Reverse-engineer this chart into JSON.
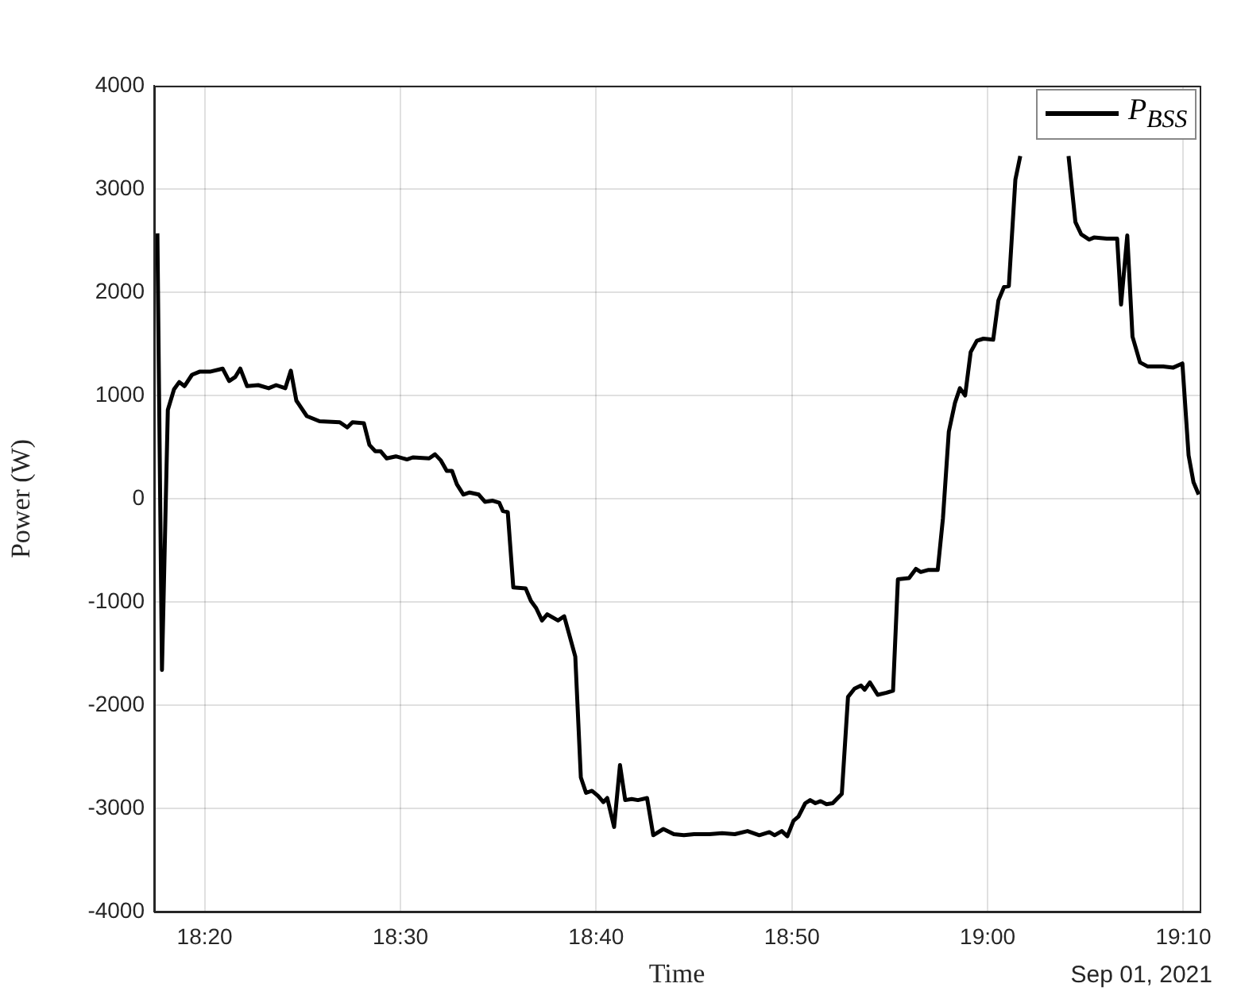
{
  "chart_data": {
    "type": "line",
    "xlabel": "Time",
    "ylabel": "Power (W)",
    "annotations": [
      "Sep 01, 2021"
    ],
    "xlim": [
      "2021-09-01T18:17:25",
      "2021-09-01T19:10:50"
    ],
    "xticks": [
      {
        "value": "2021-09-01T18:20",
        "label": "18:20"
      },
      {
        "value": "2021-09-01T18:30",
        "label": "18:30"
      },
      {
        "value": "2021-09-01T18:40",
        "label": "18:40"
      },
      {
        "value": "2021-09-01T18:50",
        "label": "18:50"
      },
      {
        "value": "2021-09-01T19:00",
        "label": "19:00"
      },
      {
        "value": "2021-09-01T19:10",
        "label": "19:10"
      }
    ],
    "ylim": [
      -4000,
      4000
    ],
    "yticks": [
      -4000,
      -3000,
      -2000,
      -1000,
      0,
      1000,
      2000,
      3000,
      4000
    ],
    "grid": true,
    "legend": "top right",
    "line_style": "solid",
    "marker": "none",
    "x": [
      "2021-09-01T18:17:35",
      "2021-09-01T18:17:49",
      "2021-09-01T18:18:07",
      "2021-09-01T18:18:26",
      "2021-09-01T18:18:42",
      "2021-09-01T18:18:58",
      "2021-09-01T18:19:21",
      "2021-09-01T18:19:44",
      "2021-09-01T18:20:16",
      "2021-09-01T18:20:55",
      "2021-09-01T18:21:15",
      "2021-09-01T18:21:34",
      "2021-09-01T18:21:49",
      "2021-09-01T18:22:10",
      "2021-09-01T18:22:44",
      "2021-09-01T18:23:16",
      "2021-09-01T18:23:39",
      "2021-09-01T18:24:07",
      "2021-09-01T18:24:24",
      "2021-09-01T18:24:41",
      "2021-09-01T18:25:13",
      "2021-09-01T18:25:52",
      "2021-09-01T18:26:54",
      "2021-09-01T18:27:17",
      "2021-09-01T18:27:33",
      "2021-09-01T18:28:08",
      "2021-09-01T18:28:25",
      "2021-09-01T18:28:43",
      "2021-09-01T18:28:59",
      "2021-09-01T18:29:18",
      "2021-09-01T18:29:46",
      "2021-09-01T18:30:20",
      "2021-09-01T18:30:38",
      "2021-09-01T18:31:28",
      "2021-09-01T18:31:46",
      "2021-09-01T18:32:04",
      "2021-09-01T18:32:22",
      "2021-09-01T18:32:38",
      "2021-09-01T18:32:53",
      "2021-09-01T18:33:13",
      "2021-09-01T18:33:32",
      "2021-09-01T18:34:00",
      "2021-09-01T18:34:19",
      "2021-09-01T18:34:43",
      "2021-09-01T18:35:03",
      "2021-09-01T18:35:14",
      "2021-09-01T18:35:29",
      "2021-09-01T18:35:46",
      "2021-09-01T18:36:24",
      "2021-09-01T18:36:40",
      "2021-09-01T18:36:56",
      "2021-09-01T18:37:14",
      "2021-09-01T18:37:30",
      "2021-09-01T18:38:03",
      "2021-09-01T18:38:22",
      "2021-09-01T18:38:37",
      "2021-09-01T18:38:56",
      "2021-09-01T18:39:13",
      "2021-09-01T18:39:29",
      "2021-09-01T18:39:47",
      "2021-09-01T18:40:06",
      "2021-09-01T18:40:22",
      "2021-09-01T18:40:34",
      "2021-09-01T18:40:55",
      "2021-09-01T18:41:13",
      "2021-09-01T18:41:29",
      "2021-09-01T18:41:49",
      "2021-09-01T18:42:08",
      "2021-09-01T18:42:36",
      "2021-09-01T18:42:55",
      "2021-09-01T18:43:26",
      "2021-09-01T18:43:58",
      "2021-09-01T18:44:29",
      "2021-09-01T18:45:00",
      "2021-09-01T18:45:47",
      "2021-09-01T18:46:26",
      "2021-09-01T18:47:05",
      "2021-09-01T18:47:44",
      "2021-09-01T18:48:20",
      "2021-09-01T18:48:51",
      "2021-09-01T18:49:07",
      "2021-09-01T18:49:29",
      "2021-09-01T18:49:46",
      "2021-09-01T18:50:05",
      "2021-09-01T18:50:20",
      "2021-09-01T18:50:41",
      "2021-09-01T18:50:56",
      "2021-09-01T18:51:12",
      "2021-09-01T18:51:28",
      "2021-09-01T18:51:46",
      "2021-09-01T18:52:05",
      "2021-09-01T18:52:33",
      "2021-09-01T18:52:52",
      "2021-09-01T18:53:12",
      "2021-09-01T18:53:32",
      "2021-09-01T18:53:43",
      "2021-09-01T18:53:59",
      "2021-09-01T18:54:23",
      "2021-09-01T18:54:50",
      "2021-09-01T18:55:10",
      "2021-09-01T18:55:25",
      "2021-09-01T18:55:59",
      "2021-09-01T18:56:20",
      "2021-09-01T18:56:35",
      "2021-09-01T18:56:59",
      "2021-09-01T18:57:27",
      "2021-09-01T18:57:43",
      "2021-09-01T18:58:01",
      "2021-09-01T18:58:20",
      "2021-09-01T18:58:35",
      "2021-09-01T18:58:51",
      "2021-09-01T18:59:08",
      "2021-09-01T18:59:27",
      "2021-09-01T18:59:47",
      "2021-09-01T19:00:17",
      "2021-09-01T19:00:33",
      "2021-09-01T19:00:50",
      "2021-09-01T19:01:05",
      "2021-09-01T19:01:25",
      "2021-09-01T19:01:40",
      "2021-09-01T19:02:54",
      "2021-09-01T19:04:08",
      "2021-09-01T19:04:29",
      "2021-09-01T19:04:47",
      "2021-09-01T19:05:11",
      "2021-09-01T19:05:26",
      "2021-09-01T19:06:05",
      "2021-09-01T19:06:37",
      "2021-09-01T19:06:49",
      "2021-09-01T19:07:08",
      "2021-09-01T19:07:24",
      "2021-09-01T19:07:47",
      "2021-09-01T19:08:11",
      "2021-09-01T19:08:58",
      "2021-09-01T19:09:29",
      "2021-09-01T19:09:57",
      "2021-09-01T19:10:16",
      "2021-09-01T19:10:31",
      "2021-09-01T19:10:47"
    ],
    "series": [
      {
        "name": "P$_{BSS}$",
        "color": "#000000",
        "values": [
          2570,
          -1660,
          860,
          1060,
          1130,
          1090,
          1200,
          1230,
          1230,
          1260,
          1140,
          1180,
          1260,
          1090,
          1100,
          1070,
          1100,
          1070,
          1240,
          950,
          800,
          750,
          740,
          690,
          740,
          730,
          520,
          460,
          460,
          390,
          410,
          380,
          400,
          390,
          430,
          370,
          270,
          270,
          140,
          40,
          60,
          40,
          -30,
          -20,
          -40,
          -120,
          -130,
          -860,
          -870,
          -990,
          -1060,
          -1180,
          -1120,
          -1180,
          -1140,
          -1310,
          -1530,
          -2700,
          -2850,
          -2830,
          -2880,
          -2940,
          -2900,
          -3180,
          -2580,
          -2920,
          -2910,
          -2920,
          -2900,
          -3260,
          -3200,
          -3250,
          -3260,
          -3250,
          -3250,
          -3240,
          -3250,
          -3220,
          -3260,
          -3230,
          -3260,
          -3220,
          -3270,
          -3120,
          -3080,
          -2950,
          -2920,
          -2950,
          -2930,
          -2960,
          -2950,
          -2860,
          -1920,
          -1840,
          -1810,
          -1850,
          -1780,
          -1900,
          -1880,
          -1860,
          -780,
          -770,
          -680,
          -710,
          -690,
          -690,
          -190,
          650,
          930,
          1070,
          1000,
          1420,
          1530,
          1550,
          1540,
          1920,
          2050,
          2060,
          3090,
          3320,
          null,
          3320,
          2680,
          2560,
          2510,
          2530,
          2520,
          2520,
          1880,
          2550,
          1570,
          1320,
          1280,
          1280,
          1270,
          1310,
          420,
          160,
          40
        ]
      }
    ]
  }
}
